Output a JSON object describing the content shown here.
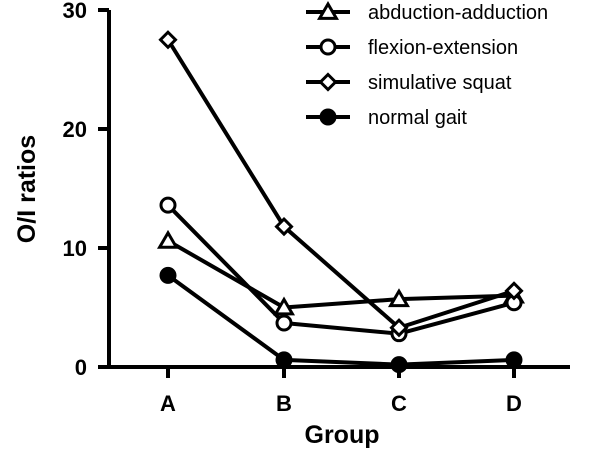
{
  "chart_data": {
    "type": "line",
    "title": "",
    "xlabel": "Group",
    "ylabel": "O/I ratios",
    "categories": [
      "A",
      "B",
      "C",
      "D"
    ],
    "ylim": [
      0,
      30
    ],
    "yticks": [
      0,
      10,
      20,
      30
    ],
    "yticklabels": [
      "0",
      "10",
      "20",
      "30"
    ],
    "legend_position": "top-right",
    "grid": false,
    "series": [
      {
        "name": "abduction-adduction",
        "marker": "triangle-open",
        "values": [
          10.6,
          5.0,
          5.7,
          6.0
        ]
      },
      {
        "name": "flexion-extension",
        "marker": "circle-open",
        "values": [
          13.6,
          3.7,
          2.8,
          5.4
        ]
      },
      {
        "name": "simulative squat",
        "marker": "diamond-open",
        "values": [
          27.5,
          11.8,
          3.3,
          6.4
        ]
      },
      {
        "name": "normal gait",
        "marker": "circle-filled",
        "values": [
          7.7,
          0.6,
          0.2,
          0.6
        ]
      }
    ],
    "line_color": "#000000"
  }
}
